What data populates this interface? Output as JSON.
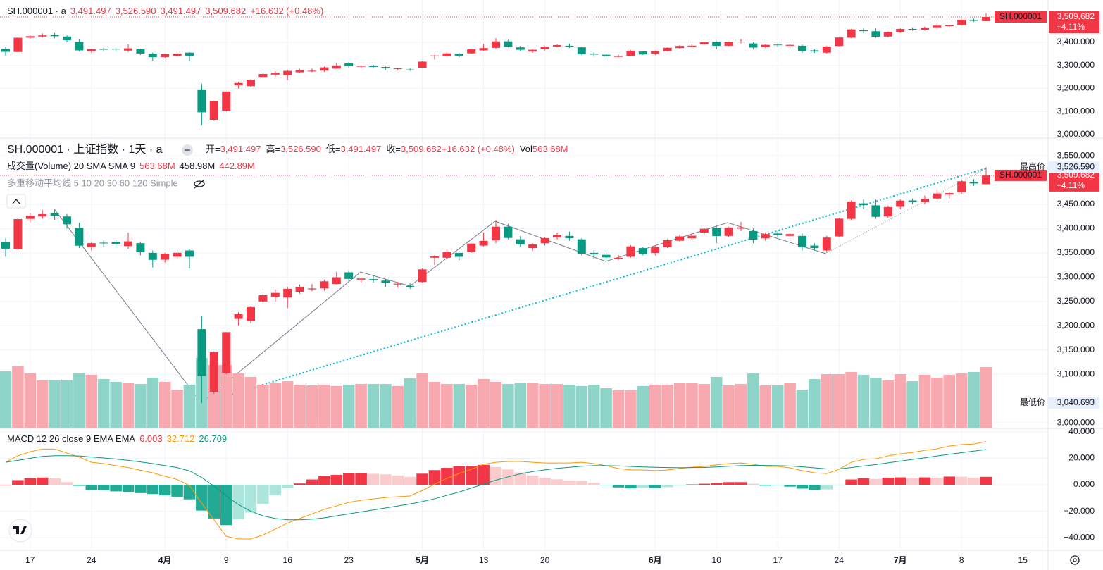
{
  "chart_data": {
    "type": "candlestick",
    "top_header": "SH.000001 · a",
    "top_header_values": [
      "3,491.497",
      "3,526.590",
      "3,491.497",
      "3,509.682",
      "+16.632 (+0.48%)"
    ],
    "title": "SH.000001 · 上证指数 · 1天 · a",
    "ohlc_legend": [
      {
        "key": "开=",
        "val": "3,491.497"
      },
      {
        "key": "高=",
        "val": "3,526.590"
      },
      {
        "key": "低=",
        "val": "3,491.497"
      },
      {
        "key": "收=",
        "val": "3,509.682"
      },
      {
        "key": "",
        "val": "+16.632 (+0.48%)"
      },
      {
        "key": "Vol",
        "val": "563.68M"
      }
    ],
    "ma_legend": "多重移动平均线 5 10 20 30 60 120 Simple",
    "up_color": "#f23645",
    "down_color": "#089981",
    "top_pane": {
      "ylim": [
        2988,
        3583
      ],
      "yticks": [
        {
          "value": 3000,
          "label": "3,000.000"
        },
        {
          "value": 3100,
          "label": "3,100.000"
        },
        {
          "value": 3200,
          "label": "3,200.000"
        },
        {
          "value": 3300,
          "label": "3,300.000"
        },
        {
          "value": 3400,
          "label": "3,400.000"
        }
      ]
    },
    "ylim": [
      2990,
      3585
    ],
    "yticks": [
      {
        "value": 3000,
        "label": "3,000.000"
      },
      {
        "value": 3100,
        "label": "3,100.000"
      },
      {
        "value": 3150,
        "label": "3,150.000"
      },
      {
        "value": 3200,
        "label": "3,200.000"
      },
      {
        "value": 3250,
        "label": "3,250.000"
      },
      {
        "value": 3300,
        "label": "3,300.000"
      },
      {
        "value": 3350,
        "label": "3,350.000"
      },
      {
        "value": 3400,
        "label": "3,400.000"
      },
      {
        "value": 3450,
        "label": "3,450.000"
      },
      {
        "value": 3550,
        "label": "3,550.000"
      }
    ],
    "last_price": {
      "name": "SH.000001",
      "value": 3509.682,
      "label": "3,509.682",
      "change": "+4.11%"
    },
    "high_marker": {
      "name": "最高价",
      "value": 3526.59,
      "label": "3,526.590"
    },
    "low_marker": {
      "name": "最低价",
      "value": 3040.693,
      "label": "3,040.693"
    },
    "categories": [
      null,
      null,
      "17",
      null,
      null,
      null,
      null,
      "24",
      null,
      null,
      null,
      null,
      null,
      "4月",
      null,
      null,
      null,
      null,
      "9",
      null,
      null,
      null,
      null,
      "16",
      null,
      null,
      null,
      null,
      "23",
      null,
      null,
      null,
      null,
      null,
      "5月",
      null,
      null,
      null,
      null,
      "13",
      null,
      null,
      null,
      null,
      "20",
      null,
      null,
      null,
      null,
      null,
      null,
      null,
      null,
      "6月",
      null,
      null,
      null,
      null,
      "10",
      null,
      null,
      null,
      null,
      "17",
      null,
      null,
      null,
      null,
      "24",
      null,
      null,
      null,
      null,
      "7月",
      null,
      null,
      null,
      null,
      "8",
      null,
      null
    ],
    "x_end_label": "15",
    "candles": [
      [
        3372,
        3380,
        3342,
        3358.73
      ],
      [
        3358,
        3421,
        3356,
        3419.56
      ],
      [
        3420,
        3432,
        3413,
        3426.43
      ],
      [
        3425,
        3439,
        3420,
        3429.76
      ],
      [
        3432,
        3440,
        3418,
        3426.43
      ],
      [
        3425,
        3430,
        3400,
        3408.95
      ],
      [
        3402,
        3412,
        3360,
        3364.83
      ],
      [
        3362,
        3372,
        3355,
        3370.03
      ],
      [
        3371,
        3376,
        3362,
        3369.98
      ],
      [
        3372,
        3376,
        3362,
        3368.7
      ],
      [
        3364,
        3392,
        3358,
        3373.75
      ],
      [
        3370,
        3372,
        3345,
        3351.31
      ],
      [
        3350,
        3355,
        3320,
        3335.75
      ],
      [
        3336,
        3350,
        3330,
        3348.44
      ],
      [
        3342,
        3356,
        3338,
        3350.13
      ],
      [
        3355,
        3358,
        3318,
        3342.01
      ],
      [
        3193,
        3220,
        3040.693,
        3096.58
      ],
      [
        3064,
        3147,
        3060,
        3145.55
      ],
      [
        3103,
        3187,
        3100,
        3186.81
      ],
      [
        3214,
        3228,
        3200,
        3223.64
      ],
      [
        3210,
        3240,
        3205,
        3238.23
      ],
      [
        3250,
        3270,
        3245,
        3262.81
      ],
      [
        3260,
        3275,
        3250,
        3267.66
      ],
      [
        3258,
        3280,
        3236,
        3276
      ],
      [
        3270,
        3285,
        3266,
        3280.34
      ],
      [
        3275,
        3286,
        3271,
        3276.73
      ],
      [
        3277,
        3295,
        3272,
        3291.43
      ],
      [
        3286,
        3311,
        3285,
        3299.76
      ],
      [
        3310,
        3314,
        3290,
        3296.36
      ],
      [
        3295,
        3300,
        3288,
        3297.29
      ],
      [
        3296,
        3303,
        3289,
        3295.06
      ],
      [
        3293,
        3296,
        3280,
        3288.41
      ],
      [
        3285,
        3290,
        3278,
        3286.65
      ],
      [
        3282,
        3288,
        3276,
        3279.03
      ],
      [
        3290,
        3318,
        3289,
        3316.11
      ],
      [
        3340,
        3345,
        3325,
        3342.67
      ],
      [
        3340,
        3358,
        3338,
        3352
      ],
      [
        3350,
        3354,
        3335,
        3342
      ],
      [
        3352,
        3370,
        3350,
        3369.24
      ],
      [
        3365,
        3392,
        3363,
        3374.87
      ],
      [
        3376,
        3418,
        3370,
        3403.95
      ],
      [
        3404,
        3410,
        3378,
        3380.82
      ],
      [
        3378,
        3385,
        3362,
        3367.46
      ],
      [
        3360,
        3370,
        3355,
        3367.58
      ],
      [
        3370,
        3383,
        3365,
        3380.48
      ],
      [
        3382,
        3392,
        3378,
        3387.57
      ],
      [
        3385,
        3394,
        3375,
        3380.19
      ],
      [
        3378,
        3380,
        3345,
        3348.37
      ],
      [
        3350,
        3356,
        3338,
        3346.84
      ],
      [
        3346,
        3350,
        3335,
        3340.69
      ],
      [
        3338,
        3346,
        3335,
        3339.93
      ],
      [
        3342,
        3366,
        3340,
        3363.45
      ],
      [
        3360,
        3362,
        3345,
        3347.49
      ],
      [
        3350,
        3365,
        3345,
        3361.98
      ],
      [
        3362,
        3378,
        3360,
        3376.2
      ],
      [
        3375,
        3388,
        3372,
        3384.1
      ],
      [
        3380,
        3390,
        3378,
        3385.36
      ],
      [
        3392,
        3402,
        3388,
        3399.77
      ],
      [
        3402,
        3405,
        3370,
        3384.82
      ],
      [
        3385,
        3404,
        3383,
        3402.32
      ],
      [
        3400,
        3414,
        3395,
        3402.66
      ],
      [
        3395,
        3400,
        3370,
        3377
      ],
      [
        3380,
        3392,
        3375,
        3388.81
      ],
      [
        3390,
        3395,
        3380,
        3387.4
      ],
      [
        3385,
        3392,
        3375,
        3388.81
      ],
      [
        3385,
        3390,
        3355,
        3362.11
      ],
      [
        3365,
        3370,
        3355,
        3359.9
      ],
      [
        3355,
        3385,
        3350,
        3381.58
      ],
      [
        3384,
        3422,
        3383,
        3420.57
      ],
      [
        3420,
        3458,
        3418,
        3455.97
      ],
      [
        3452,
        3460,
        3440,
        3448.45
      ],
      [
        3448,
        3460,
        3420,
        3424.23
      ],
      [
        3425,
        3447,
        3422,
        3444.43
      ],
      [
        3445,
        3460,
        3440,
        3457.75
      ],
      [
        3458,
        3462,
        3450,
        3454.79
      ],
      [
        3455,
        3468,
        3450,
        3461.15
      ],
      [
        3462,
        3480,
        3460,
        3472.32
      ],
      [
        3470,
        3475,
        3462,
        3473.13
      ],
      [
        3475,
        3500,
        3472,
        3497.48
      ],
      [
        3496,
        3502,
        3488,
        3493.05
      ],
      [
        3491.497,
        3526.59,
        3491.497,
        3509.682
      ]
    ],
    "volume": {
      "name": "成交量(Volume) 20 SMA SMA 9",
      "legend_values": [
        "563.68M",
        "458.98M",
        "442.89M"
      ],
      "values": [
        524,
        570,
        505,
        439,
        439,
        446,
        505,
        491,
        452,
        426,
        413,
        406,
        465,
        426,
        354,
        400,
        649,
        583,
        583,
        505,
        472,
        400,
        419,
        432,
        400,
        393,
        400,
        387,
        400,
        406,
        406,
        406,
        387,
        459,
        505,
        426,
        406,
        406,
        400,
        452,
        426,
        406,
        419,
        419,
        406,
        406,
        400,
        387,
        400,
        367,
        347,
        347,
        387,
        400,
        400,
        413,
        413,
        406,
        472,
        393,
        406,
        505,
        393,
        393,
        413,
        354,
        452,
        498,
        498,
        518,
        491,
        465,
        439,
        498,
        432,
        491,
        465,
        491,
        505,
        518,
        563.68
      ]
    },
    "macd": {
      "name": "MACD 12 26 close 9 EMA EMA",
      "legend_values": [
        "6.003",
        "32.712",
        "26.709"
      ],
      "ylim": [
        -49,
        41.6
      ],
      "yticks": [
        {
          "value": 40,
          "label": "40.000"
        },
        {
          "value": 20,
          "label": "20.000"
        },
        {
          "value": 0,
          "label": "0.000"
        },
        {
          "value": -20,
          "label": "−20.000"
        },
        {
          "value": -40,
          "label": "−40.000"
        }
      ],
      "histogram": [
        0,
        3.5,
        5,
        5.5,
        5,
        2,
        -0.8,
        -4,
        -4.3,
        -5,
        -5.5,
        -6.3,
        -7,
        -8,
        -9,
        -11,
        -19.5,
        -25.5,
        -30.5,
        -26,
        -21,
        -14.5,
        -8,
        -2.5,
        1,
        4,
        6.5,
        7.5,
        8.7,
        8.8,
        8.3,
        7.9,
        7,
        6,
        8.4,
        11.1,
        12.8,
        14,
        14.2,
        15,
        13.5,
        11.6,
        9.3,
        7,
        5.2,
        4.1,
        3.3,
        3,
        1.5,
        -0.1,
        -2,
        -2.7,
        -2.3,
        -2.5,
        -1.8,
        -0.6,
        0.3,
        0.8,
        1.5,
        2,
        2,
        0.8,
        -0.7,
        -0.6,
        -1.4,
        -2.9,
        -3.8,
        -3.5,
        -0.3,
        4,
        5,
        4.4,
        5.3,
        5.6,
        5.3,
        5.6,
        5.4,
        6.2,
        6.1,
        5.4,
        6.003
      ],
      "macd_line": {
        "color": "#ff9800",
        "values": [
          17,
          22,
          25,
          27,
          27,
          24,
          21,
          17,
          16,
          14.5,
          13,
          11,
          9,
          6.5,
          4,
          -0.5,
          -14,
          -26.5,
          -39,
          -41,
          -41,
          -38,
          -33.5,
          -29,
          -25.5,
          -22,
          -18.5,
          -16,
          -13.3,
          -11.7,
          -10.7,
          -9.6,
          -9,
          -8.5,
          -4.3,
          0.5,
          4.8,
          8.5,
          11.7,
          15.5,
          17,
          17.6,
          17.6,
          17,
          16.5,
          16.5,
          16.5,
          17,
          16,
          14.4,
          12.3,
          11.2,
          11.2,
          10.7,
          11.2,
          12.3,
          13.3,
          13.9,
          15,
          16,
          16.5,
          15.5,
          13.9,
          13.9,
          12.8,
          10.7,
          9,
          8.5,
          11.7,
          17,
          19.2,
          19.7,
          21.9,
          23.5,
          24.5,
          26,
          27.2,
          29.3,
          30.4,
          30.9,
          32.712
        ]
      },
      "signal_line": {
        "color": "#089981",
        "values": [
          17,
          18.5,
          20,
          21.5,
          22,
          22,
          21.8,
          21,
          20.3,
          19.5,
          18.5,
          17.3,
          16,
          14.5,
          13,
          10.5,
          5.5,
          -1,
          -8.5,
          -15,
          -20,
          -23.5,
          -25.5,
          -26.5,
          -26.5,
          -26,
          -25,
          -23.5,
          -22,
          -20.5,
          -19,
          -17.5,
          -16,
          -14.5,
          -12.7,
          -10.6,
          -8,
          -5.5,
          -2.5,
          0.5,
          3.5,
          6,
          8.3,
          10,
          11.3,
          12.4,
          13.2,
          14,
          14.5,
          14.5,
          14.3,
          13.9,
          13.5,
          13.2,
          13,
          12.9,
          13,
          13.1,
          13.5,
          14,
          14.5,
          14.7,
          14.6,
          14.5,
          14.2,
          13.6,
          12.8,
          12,
          12,
          13,
          14.2,
          15.3,
          16.6,
          17.9,
          19.2,
          20.4,
          21.8,
          23.1,
          24.3,
          25.5,
          26.709
        ]
      }
    }
  }
}
